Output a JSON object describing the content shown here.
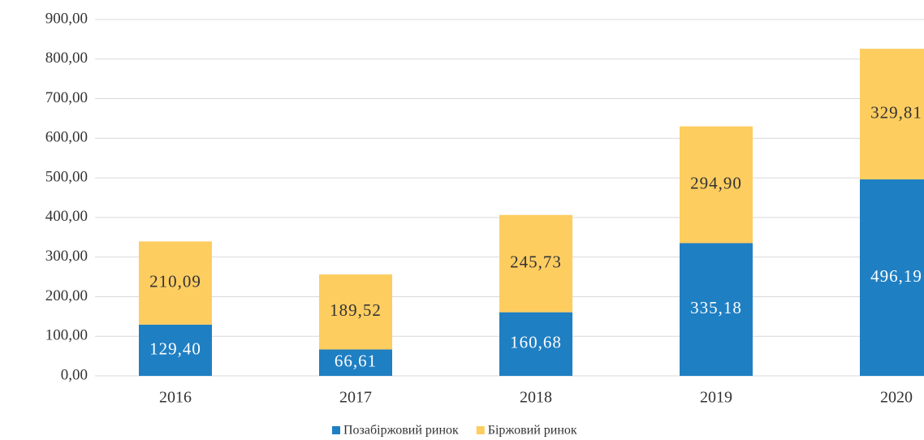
{
  "chart_data": {
    "type": "stacked-bar",
    "categories": [
      "2016",
      "2017",
      "2018",
      "2019",
      "2020"
    ],
    "series": [
      {
        "name": "Позабіржовий ринок",
        "color": "#1f7fc3",
        "values": [
          129.4,
          66.61,
          160.68,
          335.18,
          496.19
        ],
        "value_labels": [
          "129,40",
          "66,61",
          "160,68",
          "335,18",
          "496,19"
        ]
      },
      {
        "name": "Біржовий ринок",
        "color": "#fdcd60",
        "values": [
          210.09,
          189.52,
          245.73,
          294.9,
          329.81
        ],
        "value_labels": [
          "210,09",
          "189,52",
          "245,73",
          "294,90",
          "329,81"
        ]
      }
    ],
    "ylim": [
      0,
      900
    ],
    "yticks": [
      {
        "value": 0,
        "label": "0,00"
      },
      {
        "value": 100,
        "label": "100,00"
      },
      {
        "value": 200,
        "label": "200,00"
      },
      {
        "value": 300,
        "label": "300,00"
      },
      {
        "value": 400,
        "label": "400,00"
      },
      {
        "value": 500,
        "label": "500,00"
      },
      {
        "value": 600,
        "label": "600,00"
      },
      {
        "value": 700,
        "label": "700,00"
      },
      {
        "value": 800,
        "label": "800,00"
      },
      {
        "value": 900,
        "label": "900,00"
      }
    ],
    "grid": true,
    "legend": "bottom"
  }
}
